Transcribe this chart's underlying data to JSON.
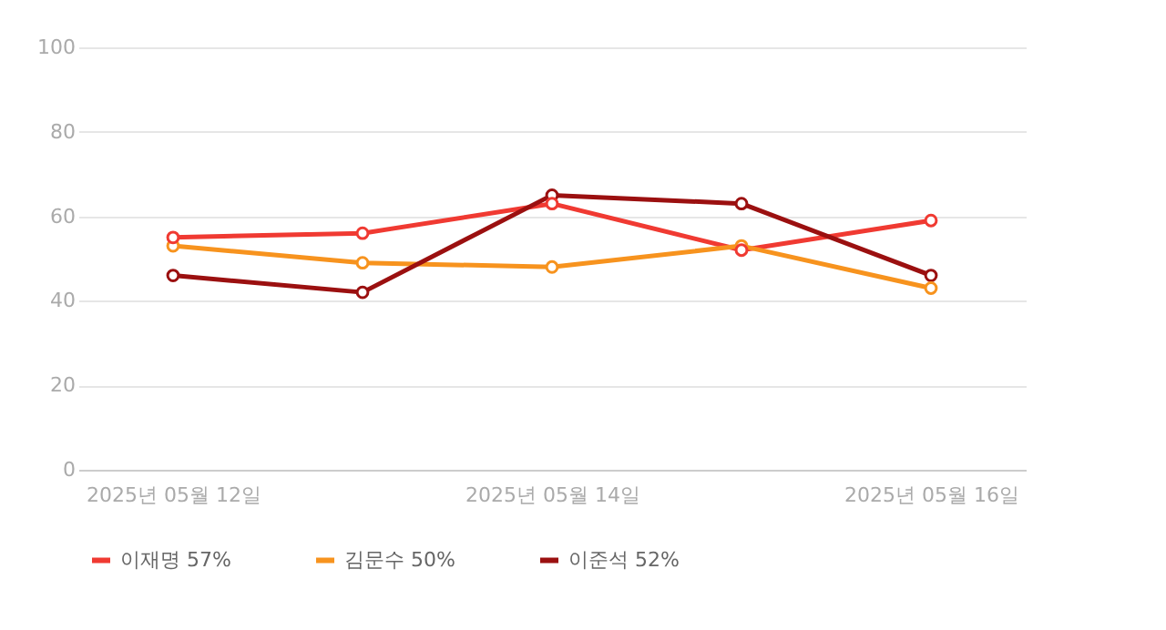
{
  "chart_data": {
    "type": "line",
    "categories": [
      "2025년 05월 12일",
      null,
      "2025년 05월 14일",
      null,
      "2025년 05월 16일"
    ],
    "series": [
      {
        "name": "이재명 57%",
        "color": "#f03a32",
        "values": [
          55,
          56,
          63,
          52,
          59
        ]
      },
      {
        "name": "김문수 50%",
        "color": "#f7931e",
        "values": [
          53,
          49,
          48,
          53,
          43
        ]
      },
      {
        "name": "이준석 52%",
        "color": "#9b1010",
        "values": [
          46,
          42,
          65,
          63,
          46
        ]
      }
    ],
    "ylim": [
      0,
      100
    ],
    "yticks": [
      0,
      20,
      40,
      60,
      80,
      100
    ],
    "grid": "y",
    "legend": "bottom",
    "marker": "circle",
    "line_style": "solid"
  }
}
